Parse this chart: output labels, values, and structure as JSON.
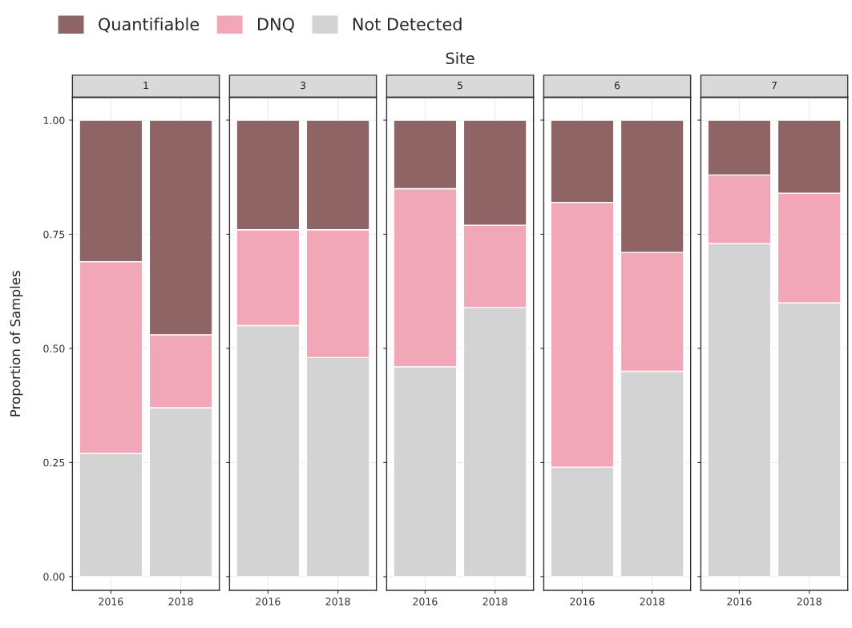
{
  "chart_data": [
    {
      "type": "bar",
      "title": "1",
      "annotations": [
        "Site"
      ],
      "ylabel": "Proportion of Samples",
      "categories": [
        "2016",
        "2018"
      ],
      "stacked": true,
      "ylim": [
        -0.03,
        1.05
      ],
      "yticks": [
        {
          "value": 0,
          "label": "0.00"
        },
        {
          "value": 0.25,
          "label": "0.25"
        },
        {
          "value": 0.5,
          "label": "0.50"
        },
        {
          "value": 0.75,
          "label": "0.75"
        },
        {
          "value": 1,
          "label": "1.00"
        }
      ],
      "grid": true,
      "legend": "top",
      "series": [
        {
          "name": "Not Detected",
          "color": "#d3d3d3",
          "values": [
            0.27,
            0.37
          ]
        },
        {
          "name": "DNQ",
          "color": "#f2a7b8",
          "values": [
            0.42,
            0.16
          ]
        },
        {
          "name": "Quantifiable",
          "color": "#8e6464",
          "values": [
            0.31,
            0.47
          ]
        }
      ]
    },
    {
      "type": "bar",
      "title": "3",
      "categories": [
        "2016",
        "2018"
      ],
      "stacked": true,
      "ylim": [
        -0.03,
        1.05
      ],
      "yticks": [
        {
          "value": 0,
          "label": null
        },
        {
          "value": 0.25,
          "label": null
        },
        {
          "value": 0.5,
          "label": null
        },
        {
          "value": 0.75,
          "label": null
        },
        {
          "value": 1,
          "label": null
        }
      ],
      "grid": true,
      "tick_labels": "x",
      "series": [
        {
          "color": "#d3d3d3",
          "values": [
            0.55,
            0.48
          ]
        },
        {
          "color": "#f2a7b8",
          "values": [
            0.21,
            0.28
          ]
        },
        {
          "color": "#8e6464",
          "values": [
            0.24,
            0.24
          ]
        }
      ]
    },
    {
      "type": "bar",
      "title": "5",
      "categories": [
        "2016",
        "2018"
      ],
      "stacked": true,
      "ylim": [
        -0.03,
        1.05
      ],
      "yticks": [
        {
          "value": 0,
          "label": null
        },
        {
          "value": 0.25,
          "label": null
        },
        {
          "value": 0.5,
          "label": null
        },
        {
          "value": 0.75,
          "label": null
        },
        {
          "value": 1,
          "label": null
        }
      ],
      "grid": true,
      "tick_labels": "x",
      "series": [
        {
          "color": "#d3d3d3",
          "values": [
            0.46,
            0.59
          ]
        },
        {
          "color": "#f2a7b8",
          "values": [
            0.39,
            0.18
          ]
        },
        {
          "color": "#8e6464",
          "values": [
            0.15,
            0.23
          ]
        }
      ]
    },
    {
      "type": "bar",
      "title": "6",
      "categories": [
        "2016",
        "2018"
      ],
      "stacked": true,
      "ylim": [
        -0.03,
        1.05
      ],
      "yticks": [
        {
          "value": 0,
          "label": null
        },
        {
          "value": 0.25,
          "label": null
        },
        {
          "value": 0.5,
          "label": null
        },
        {
          "value": 0.75,
          "label": null
        },
        {
          "value": 1,
          "label": null
        }
      ],
      "grid": true,
      "tick_labels": "x",
      "series": [
        {
          "color": "#d3d3d3",
          "values": [
            0.24,
            0.45
          ]
        },
        {
          "color": "#f2a7b8",
          "values": [
            0.58,
            0.26
          ]
        },
        {
          "color": "#8e6464",
          "values": [
            0.18,
            0.29
          ]
        }
      ]
    },
    {
      "type": "bar",
      "title": "7",
      "categories": [
        "2016",
        "2018"
      ],
      "stacked": true,
      "ylim": [
        -0.03,
        1.05
      ],
      "yticks": [
        {
          "value": 0,
          "label": null
        },
        {
          "value": 0.25,
          "label": null
        },
        {
          "value": 0.5,
          "label": null
        },
        {
          "value": 0.75,
          "label": null
        },
        {
          "value": 1,
          "label": null
        }
      ],
      "grid": true,
      "tick_labels": "x",
      "series": [
        {
          "color": "#d3d3d3",
          "values": [
            0.73,
            0.6
          ]
        },
        {
          "color": "#f2a7b8",
          "values": [
            0.15,
            0.24
          ]
        },
        {
          "color": "#8e6464",
          "values": [
            0.12,
            0.16
          ]
        }
      ]
    }
  ]
}
